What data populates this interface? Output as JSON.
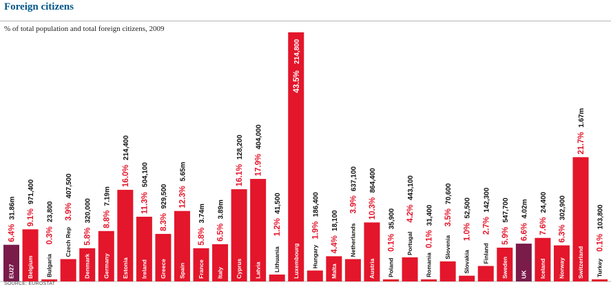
{
  "title": "Foreign citizens",
  "subtitle": "% of total population and total foreign citizens, 2009",
  "source": "SOURCE: EUROSTAT",
  "colors": {
    "bar": "#e3162b",
    "highlight": "#7a1b4a",
    "pct_text": "#e3162b",
    "total_text": "#111111",
    "title": "#005689"
  },
  "chart_data": {
    "type": "bar",
    "categories": [
      "EU27",
      "Belgium",
      "Bulgaria",
      "Czech Rep",
      "Denmark",
      "Germany",
      "Estonia",
      "Ireland",
      "Greece",
      "Spain",
      "France",
      "Italy",
      "Cyprus",
      "Latvia",
      "Lithuania",
      "Luxembourg",
      "Hungary",
      "Malta",
      "Netherlands",
      "Austria",
      "Poland",
      "Portugal",
      "Romania",
      "Slovenia",
      "Slovakia",
      "Finland",
      "Sweden",
      "UK",
      "Iceland",
      "Norway",
      "Switzerland",
      "Turkey"
    ],
    "series": [
      {
        "values": [
          6.4,
          9.1,
          0.3,
          3.9,
          5.8,
          8.8,
          16.0,
          11.3,
          8.3,
          12.3,
          5.8,
          6.5,
          16.1,
          17.9,
          1.2,
          43.5,
          1.9,
          4.4,
          3.9,
          10.3,
          0.1,
          4.2,
          0.1,
          3.5,
          1.0,
          2.7,
          5.9,
          6.6,
          7.6,
          6.3,
          21.7,
          0.1
        ]
      }
    ],
    "pct_labels": [
      "6.4%",
      "9.1%",
      "0.3%",
      "3.9%",
      "5.8%",
      "8.8%",
      "16.0%",
      "11.3%",
      "8.3%",
      "12.3%",
      "5.8%",
      "6.5%",
      "16.1%",
      "17.9%",
      "1.2%",
      "43.5%",
      "1.9%",
      "4.4%",
      "3.9%",
      "10.3%",
      "0.1%",
      "4.2%",
      "0.1%",
      "3.5%",
      "1.0%",
      "2.7%",
      "5.9%",
      "6.6%",
      "7.6%",
      "6.3%",
      "21.7%",
      "0.1%"
    ],
    "totals": [
      "31.86m",
      "971,400",
      "23,800",
      "407,500",
      "320,000",
      "7.19m",
      "214,400",
      "504,100",
      "929,500",
      "5.65m",
      "3.74m",
      "3.89m",
      "128,200",
      "404,000",
      "41,500",
      "214,800",
      "186,400",
      "18,100",
      "637,100",
      "864,400",
      "35,900",
      "443,100",
      "31,400",
      "70,600",
      "52,500",
      "142,300",
      "547,700",
      "4.02m",
      "24,400",
      "302,900",
      "1.67m",
      "103,800"
    ],
    "highlight": [
      "EU27",
      "UK"
    ],
    "ylim": [
      0,
      43.5
    ],
    "grid": false,
    "legend": "none"
  }
}
